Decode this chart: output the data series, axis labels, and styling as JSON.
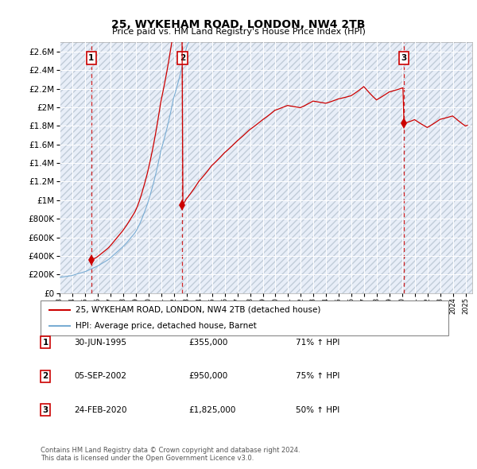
{
  "title": "25, WYKEHAM ROAD, LONDON, NW4 2TB",
  "subtitle": "Price paid vs. HM Land Registry's House Price Index (HPI)",
  "ylim": [
    0,
    2700000
  ],
  "yticks": [
    0,
    200000,
    400000,
    600000,
    800000,
    1000000,
    1200000,
    1400000,
    1600000,
    1800000,
    2000000,
    2200000,
    2400000,
    2600000
  ],
  "xlim_start": 1993.0,
  "xlim_end": 2025.5,
  "sale_dates": [
    1995.5,
    2002.67,
    2020.12
  ],
  "sale_prices": [
    355000,
    950000,
    1825000
  ],
  "sale_labels": [
    "1",
    "2",
    "3"
  ],
  "red_line_color": "#cc0000",
  "blue_line_color": "#7aadd4",
  "dot_color": "#cc0000",
  "vline_color": "#cc0000",
  "background_plot": "#e8eef8",
  "hatch_color": "#c0ccd8",
  "grid_color": "#ffffff",
  "legend_line1": "25, WYKEHAM ROAD, LONDON, NW4 2TB (detached house)",
  "legend_line2": "HPI: Average price, detached house, Barnet",
  "table_data": [
    [
      "1",
      "30-JUN-1995",
      "£355,000",
      "71% ↑ HPI"
    ],
    [
      "2",
      "05-SEP-2002",
      "£950,000",
      "75% ↑ HPI"
    ],
    [
      "3",
      "24-FEB-2020",
      "£1,825,000",
      "50% ↑ HPI"
    ]
  ],
  "footer": "Contains HM Land Registry data © Crown copyright and database right 2024.\nThis data is licensed under the Open Government Licence v3.0.",
  "hpi_base_monthly": {
    "year_start": 1993,
    "month_start": 1,
    "values": [
      100,
      101,
      102,
      103,
      104,
      105,
      106,
      107,
      108,
      109,
      110,
      111,
      113,
      115,
      117,
      119,
      121,
      123,
      125,
      127,
      129,
      131,
      133,
      135,
      137,
      140,
      143,
      146,
      149,
      152,
      155,
      158,
      161,
      164,
      167,
      170,
      174,
      178,
      182,
      186,
      190,
      194,
      198,
      202,
      206,
      210,
      215,
      220,
      226,
      232,
      238,
      244,
      250,
      256,
      262,
      268,
      274,
      280,
      286,
      292,
      299,
      306,
      313,
      320,
      328,
      336,
      344,
      352,
      360,
      368,
      376,
      385,
      396,
      408,
      421,
      435,
      450,
      466,
      483,
      500,
      518,
      536,
      555,
      575,
      597,
      619,
      642,
      666,
      691,
      717,
      744,
      772,
      801,
      831,
      862,
      894,
      918,
      942,
      967,
      992,
      1018,
      1045,
      1073,
      1102,
      1132,
      1163,
      1195,
      1228,
      1250,
      1273,
      1297,
      1321,
      1346,
      1372,
      1398,
      1425,
      1453,
      1482,
      1512,
      1543,
      1565,
      1587,
      1610,
      1633,
      1657,
      1681,
      1706,
      1731,
      1757,
      1783,
      1810,
      1838,
      1857,
      1877,
      1897,
      1917,
      1938,
      1959,
      1980,
      2002,
      2024,
      2047,
      2070,
      2094,
      2110,
      2126,
      2143,
      2160,
      2177,
      2194,
      2212,
      2230,
      2248,
      2267,
      2286,
      2305,
      2320,
      2335,
      2351,
      2367,
      2383,
      2399,
      2416,
      2432,
      2449,
      2466,
      2484,
      2501,
      2515,
      2530,
      2545,
      2560,
      2576,
      2591,
      2607,
      2623,
      2639,
      2655,
      2672,
      2688,
      2700,
      2713,
      2726,
      2739,
      2752,
      2765,
      2779,
      2793,
      2807,
      2821,
      2836,
      2850,
      2862,
      2874,
      2886,
      2899,
      2912,
      2925,
      2938,
      2952,
      2966,
      2980,
      2994,
      3009,
      3015,
      3021,
      3028,
      3034,
      3041,
      3047,
      3054,
      3061,
      3068,
      3075,
      3082,
      3089,
      3085,
      3082,
      3079,
      3076,
      3073,
      3070,
      3067,
      3064,
      3061,
      3058,
      3055,
      3052,
      3060,
      3068,
      3076,
      3085,
      3094,
      3103,
      3112,
      3121,
      3131,
      3141,
      3151,
      3161,
      3158,
      3155,
      3152,
      3149,
      3146,
      3143,
      3140,
      3137,
      3134,
      3131,
      3128,
      3125,
      3130,
      3135,
      3140,
      3146,
      3152,
      3158,
      3164,
      3170,
      3177,
      3183,
      3190,
      3197,
      3200,
      3204,
      3208,
      3212,
      3216,
      3221,
      3225,
      3230,
      3234,
      3239,
      3244,
      3249,
      3260,
      3271,
      3283,
      3295,
      3307,
      3319,
      3332,
      3345,
      3358,
      3372,
      3386,
      3400,
      3380,
      3360,
      3340,
      3321,
      3302,
      3283,
      3265,
      3247,
      3230,
      3213,
      3196,
      3180,
      3190,
      3200,
      3211,
      3221,
      3232,
      3243,
      3254,
      3265,
      3276,
      3288,
      3299,
      3311,
      3315,
      3320,
      3325,
      3330,
      3335,
      3340,
      3345,
      3351,
      3356,
      3362,
      3368,
      3374,
      3380,
      3387,
      3394,
      3401,
      3408,
      3416,
      3423,
      3431,
      3439,
      3447,
      3455,
      3464,
      3450,
      3436,
      3422,
      3409,
      3395,
      3382,
      3369,
      3357,
      3344,
      3332,
      3320,
      3308,
      3320,
      3332,
      3345,
      3358,
      3371,
      3384,
      3398,
      3412,
      3426,
      3440,
      3455,
      3470,
      3475,
      3480,
      3486,
      3491,
      3497,
      3502,
      3508,
      3514,
      3520,
      3526,
      3532,
      3538,
      3520,
      3502,
      3484,
      3467,
      3450,
      3433,
      3417,
      3400,
      3384,
      3368,
      3353,
      3337,
      3345,
      3353,
      3361,
      3369,
      3378
    ]
  }
}
